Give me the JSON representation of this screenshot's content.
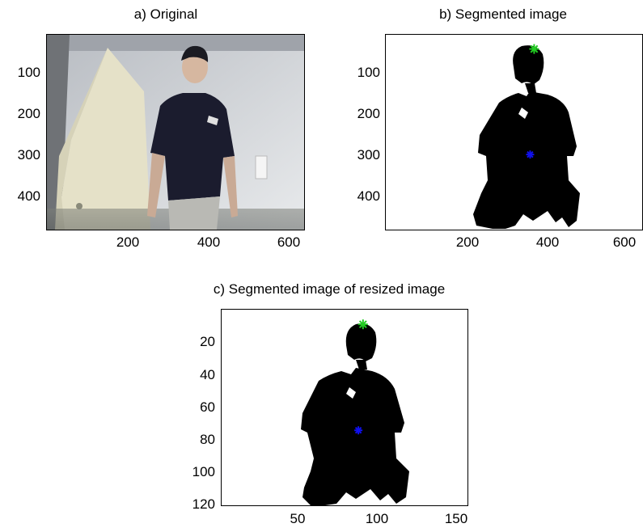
{
  "panels": {
    "a": {
      "title": "a) Original",
      "yticks": [
        "100",
        "200",
        "300",
        "400"
      ],
      "xticks": [
        "200",
        "400",
        "600"
      ]
    },
    "b": {
      "title": "b) Segmented image",
      "yticks": [
        "100",
        "200",
        "300",
        "400"
      ],
      "xticks": [
        "200",
        "400",
        "600"
      ],
      "markers": {
        "head": {
          "x": 368,
          "y": 35,
          "color": "#22cc22"
        },
        "centroid": {
          "x": 358,
          "y": 295,
          "color": "#1010ee"
        }
      }
    },
    "c": {
      "title": "c) Segmented image of resized image",
      "yticks": [
        "20",
        "40",
        "60",
        "80",
        "100",
        "120"
      ],
      "xticks": [
        "50",
        "100",
        "150"
      ],
      "markers": {
        "head": {
          "x": 92,
          "y": 9,
          "color": "#22cc22"
        },
        "centroid": {
          "x": 89,
          "y": 74,
          "color": "#1010ee"
        }
      }
    }
  },
  "colors": {
    "figure_bg": "#ffffff",
    "axes_border": "#000000",
    "silhouette": "#000000",
    "head_marker": "#22cc22",
    "centroid_marker": "#1010ee"
  }
}
